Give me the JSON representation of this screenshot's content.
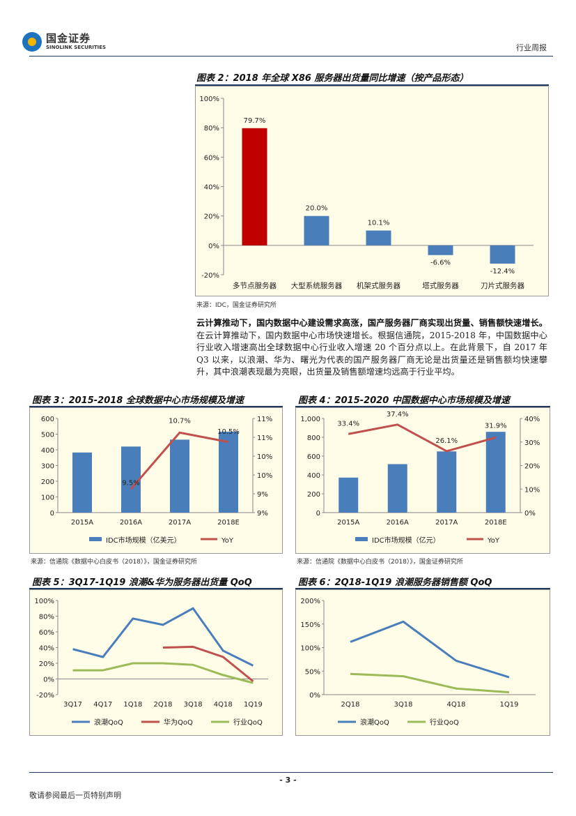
{
  "header": {
    "brand_cn": "国金证券",
    "brand_en": "SINOLINK SECURITIES",
    "report_type": "行业周报"
  },
  "figure2": {
    "title": "图表 2：2018 年全球 X86 服务器出货量同比增速（按产品形态）",
    "source": "来源：IDC，国金证券研究所"
  },
  "paragraph": {
    "bold_lead": "云计算推动下，国内数据中心建设需求高涨，国产服务器厂商实现出货量、销售额快速增长。",
    "body": "在云计算推动下，国内数据中心市场快速增长。根据信通院，2015-2018 年，中国数据中心行业收入增速高出全球数据中心行业收入增速 20 个百分点以上。在此背景下，自 2017 年 Q3 以来，以浪潮、华为、曙光为代表的国产服务器厂商无论是出货量还是销售额均快速攀升，其中浪潮表现最为亮眼，出货量及销售额增速均远高于行业平均。"
  },
  "figure3": {
    "title": "图表 3：2015-2018 全球数据中心市场规模及增速",
    "source": "来源：信通院《数据中心白皮书（2018）》，国金证券研究所"
  },
  "figure4": {
    "title": "图表 4：2015-2020 中国数据中心市场规模及增速",
    "source": "来源：信通院《数据中心白皮书（2018）》，国金证券研究所"
  },
  "figure5": {
    "title": "图表 5：3Q17-1Q19 浪潮&华为服务器出货量 QoQ"
  },
  "figure6": {
    "title": "图表 6：2Q18-1Q19 浪潮服务器销售额 QoQ"
  },
  "footer": {
    "page": "- 3 -",
    "disclaimer": "敬请参阅最后一页特别声明"
  },
  "chart_data": [
    {
      "id": "fig2",
      "type": "bar",
      "categories": [
        "多节点服务器",
        "大型系统服务器",
        "机架式服务器",
        "塔式服务器",
        "刀片式服务器"
      ],
      "values": [
        79.7,
        20.0,
        10.1,
        -6.6,
        -12.4
      ],
      "value_labels": [
        "79.7%",
        "20.0%",
        "10.1%",
        "-6.6%",
        "-12.4%"
      ],
      "colors": [
        "#c00000",
        "#4a7ebb",
        "#4a7ebb",
        "#4a7ebb",
        "#4a7ebb"
      ],
      "ylim": [
        -20,
        100
      ],
      "yticks": [
        "-20%",
        "0%",
        "20%",
        "40%",
        "60%",
        "80%",
        "100%"
      ]
    },
    {
      "id": "fig3",
      "type": "bar",
      "categories": [
        "2015A",
        "2016A",
        "2017A",
        "2018E"
      ],
      "series": [
        {
          "name": "IDC市场规模（亿美元）",
          "type": "bar",
          "values": [
            383,
            421,
            465,
            516
          ],
          "color": "#4a7ebb"
        },
        {
          "name": "YoY",
          "type": "line",
          "values": [
            null,
            9.5,
            10.7,
            10.5
          ],
          "labels": [
            "",
            "9.5%",
            "10.7%",
            "10.5%"
          ],
          "color": "#c0504d"
        }
      ],
      "ylim": [
        0,
        600
      ],
      "yticks": [
        "0",
        "100",
        "200",
        "300",
        "400",
        "500",
        "600"
      ],
      "y2lim": [
        9,
        11
      ],
      "y2ticks": [
        "9%",
        "9%",
        "10%",
        "10%",
        "11%",
        "11%"
      ]
    },
    {
      "id": "fig4",
      "type": "bar",
      "categories": [
        "2015A",
        "2016A",
        "2017A",
        "2018E"
      ],
      "series": [
        {
          "name": "IDC市场规模（亿元）",
          "type": "bar",
          "values": [
            372,
            515,
            650,
            858
          ],
          "color": "#4a7ebb"
        },
        {
          "name": "YoY",
          "type": "line",
          "values": [
            33.4,
            37.4,
            26.1,
            31.9
          ],
          "labels": [
            "33.4%",
            "37.4%",
            "26.1%",
            "31.9%"
          ],
          "color": "#c0504d"
        }
      ],
      "ylim": [
        0,
        1000
      ],
      "yticks": [
        "0",
        "200",
        "400",
        "600",
        "800",
        "1,000"
      ],
      "y2lim": [
        0,
        40
      ],
      "y2ticks": [
        "0%",
        "10%",
        "20%",
        "30%",
        "40%"
      ]
    },
    {
      "id": "fig5",
      "type": "line",
      "categories": [
        "3Q17",
        "4Q17",
        "1Q18",
        "2Q18",
        "3Q18",
        "4Q18",
        "1Q19"
      ],
      "series": [
        {
          "name": "浪潮QoQ",
          "values": [
            38,
            28,
            77,
            69,
            90,
            36,
            17
          ],
          "color": "#4a7ebb"
        },
        {
          "name": "华为QoQ",
          "values": [
            null,
            null,
            null,
            40,
            41,
            28,
            -3
          ],
          "color": "#c0504d"
        },
        {
          "name": "行业QoQ",
          "values": [
            11,
            11,
            20,
            20,
            18,
            5,
            -5
          ],
          "color": "#9bbb59"
        }
      ],
      "ylim": [
        -20,
        100
      ],
      "yticks": [
        "-20%",
        "0%",
        "20%",
        "40%",
        "60%",
        "80%",
        "100%"
      ]
    },
    {
      "id": "fig6",
      "type": "line",
      "categories": [
        "2Q18",
        "3Q18",
        "4Q18",
        "1Q19"
      ],
      "series": [
        {
          "name": "浪潮QoQ",
          "values": [
            112,
            155,
            72,
            37
          ],
          "color": "#4a7ebb"
        },
        {
          "name": "行业QoQ",
          "values": [
            44,
            39,
            13,
            5
          ],
          "color": "#9bbb59"
        }
      ],
      "ylim": [
        0,
        200
      ],
      "yticks": [
        "0%",
        "50%",
        "100%",
        "150%",
        "200%"
      ]
    }
  ]
}
